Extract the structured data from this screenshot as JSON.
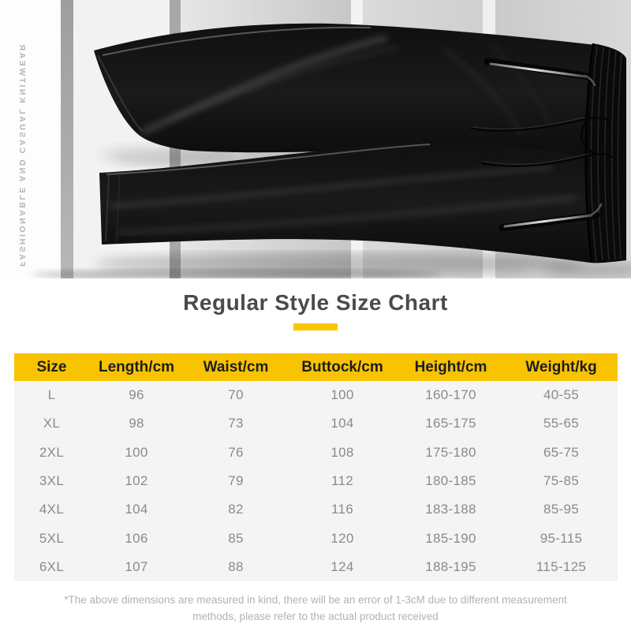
{
  "photo": {
    "vertical_text": "FASHIONABLE AND CASUAL KNITWEAR",
    "subject": "black-jogger-pants-product-photo"
  },
  "title": {
    "text": "Regular Style Size Chart",
    "text_color": "#4a4a4a",
    "accent_color": "#F9C400"
  },
  "table": {
    "header_bg": "#F8C300",
    "header_text_color": "#1d1d1f",
    "body_bg": "#f4f4f4",
    "body_text_color": "#8a8a8a",
    "headers": [
      "Size",
      "Length/cm",
      "Waist/cm",
      "Buttock/cm",
      "Height/cm",
      "Weight/kg"
    ],
    "rows": [
      [
        "L",
        "96",
        "70",
        "100",
        "160-170",
        "40-55"
      ],
      [
        "XL",
        "98",
        "73",
        "104",
        "165-175",
        "55-65"
      ],
      [
        "2XL",
        "100",
        "76",
        "108",
        "175-180",
        "65-75"
      ],
      [
        "3XL",
        "102",
        "79",
        "112",
        "180-185",
        "75-85"
      ],
      [
        "4XL",
        "104",
        "82",
        "116",
        "183-188",
        "85-95"
      ],
      [
        "5XL",
        "106",
        "85",
        "120",
        "185-190",
        "95-115"
      ],
      [
        "6XL",
        "107",
        "88",
        "124",
        "188-195",
        "115-125"
      ]
    ]
  },
  "footnote": {
    "line1": "*The above dimensions are measured in kind, there will be an error of 1-3cM due to different measurement",
    "line2": "methods, please refer to the actual product received"
  }
}
